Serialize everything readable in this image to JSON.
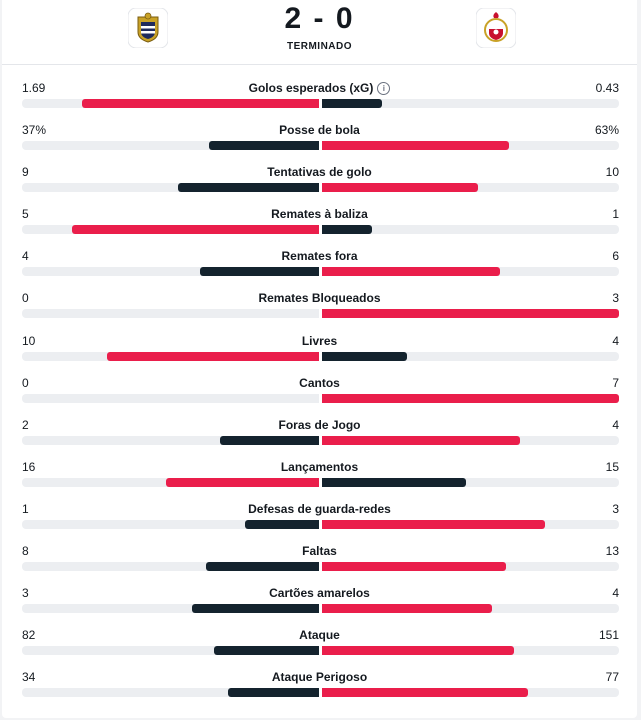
{
  "match": {
    "score": "2 - 0",
    "status": "TERMINADO",
    "home_logo": "famalicao-crest",
    "away_logo": "benfica-crest"
  },
  "colors": {
    "winner": "#ea1e4b",
    "loser": "#14232e",
    "track": "#eceef1"
  },
  "stats": [
    {
      "label": "Golos esperados (xG)",
      "home": "1.69",
      "away": "0.43",
      "home_num": 1.69,
      "away_num": 0.43,
      "info": true
    },
    {
      "label": "Posse de bola",
      "home": "37%",
      "away": "63%",
      "home_num": 37,
      "away_num": 63
    },
    {
      "label": "Tentativas de golo",
      "home": "9",
      "away": "10",
      "home_num": 9,
      "away_num": 10
    },
    {
      "label": "Remates à baliza",
      "home": "5",
      "away": "1",
      "home_num": 5,
      "away_num": 1
    },
    {
      "label": "Remates fora",
      "home": "4",
      "away": "6",
      "home_num": 4,
      "away_num": 6
    },
    {
      "label": "Remates Bloqueados",
      "home": "0",
      "away": "3",
      "home_num": 0,
      "away_num": 3
    },
    {
      "label": "Livres",
      "home": "10",
      "away": "4",
      "home_num": 10,
      "away_num": 4
    },
    {
      "label": "Cantos",
      "home": "0",
      "away": "7",
      "home_num": 0,
      "away_num": 7
    },
    {
      "label": "Foras de Jogo",
      "home": "2",
      "away": "4",
      "home_num": 2,
      "away_num": 4
    },
    {
      "label": "Lançamentos",
      "home": "16",
      "away": "15",
      "home_num": 16,
      "away_num": 15
    },
    {
      "label": "Defesas de guarda-redes",
      "home": "1",
      "away": "3",
      "home_num": 1,
      "away_num": 3
    },
    {
      "label": "Faltas",
      "home": "8",
      "away": "13",
      "home_num": 8,
      "away_num": 13
    },
    {
      "label": "Cartões amarelos",
      "home": "3",
      "away": "4",
      "home_num": 3,
      "away_num": 4
    },
    {
      "label": "Ataque",
      "home": "82",
      "away": "151",
      "home_num": 82,
      "away_num": 151
    },
    {
      "label": "Ataque Perigoso",
      "home": "34",
      "away": "77",
      "home_num": 34,
      "away_num": 77
    }
  ]
}
